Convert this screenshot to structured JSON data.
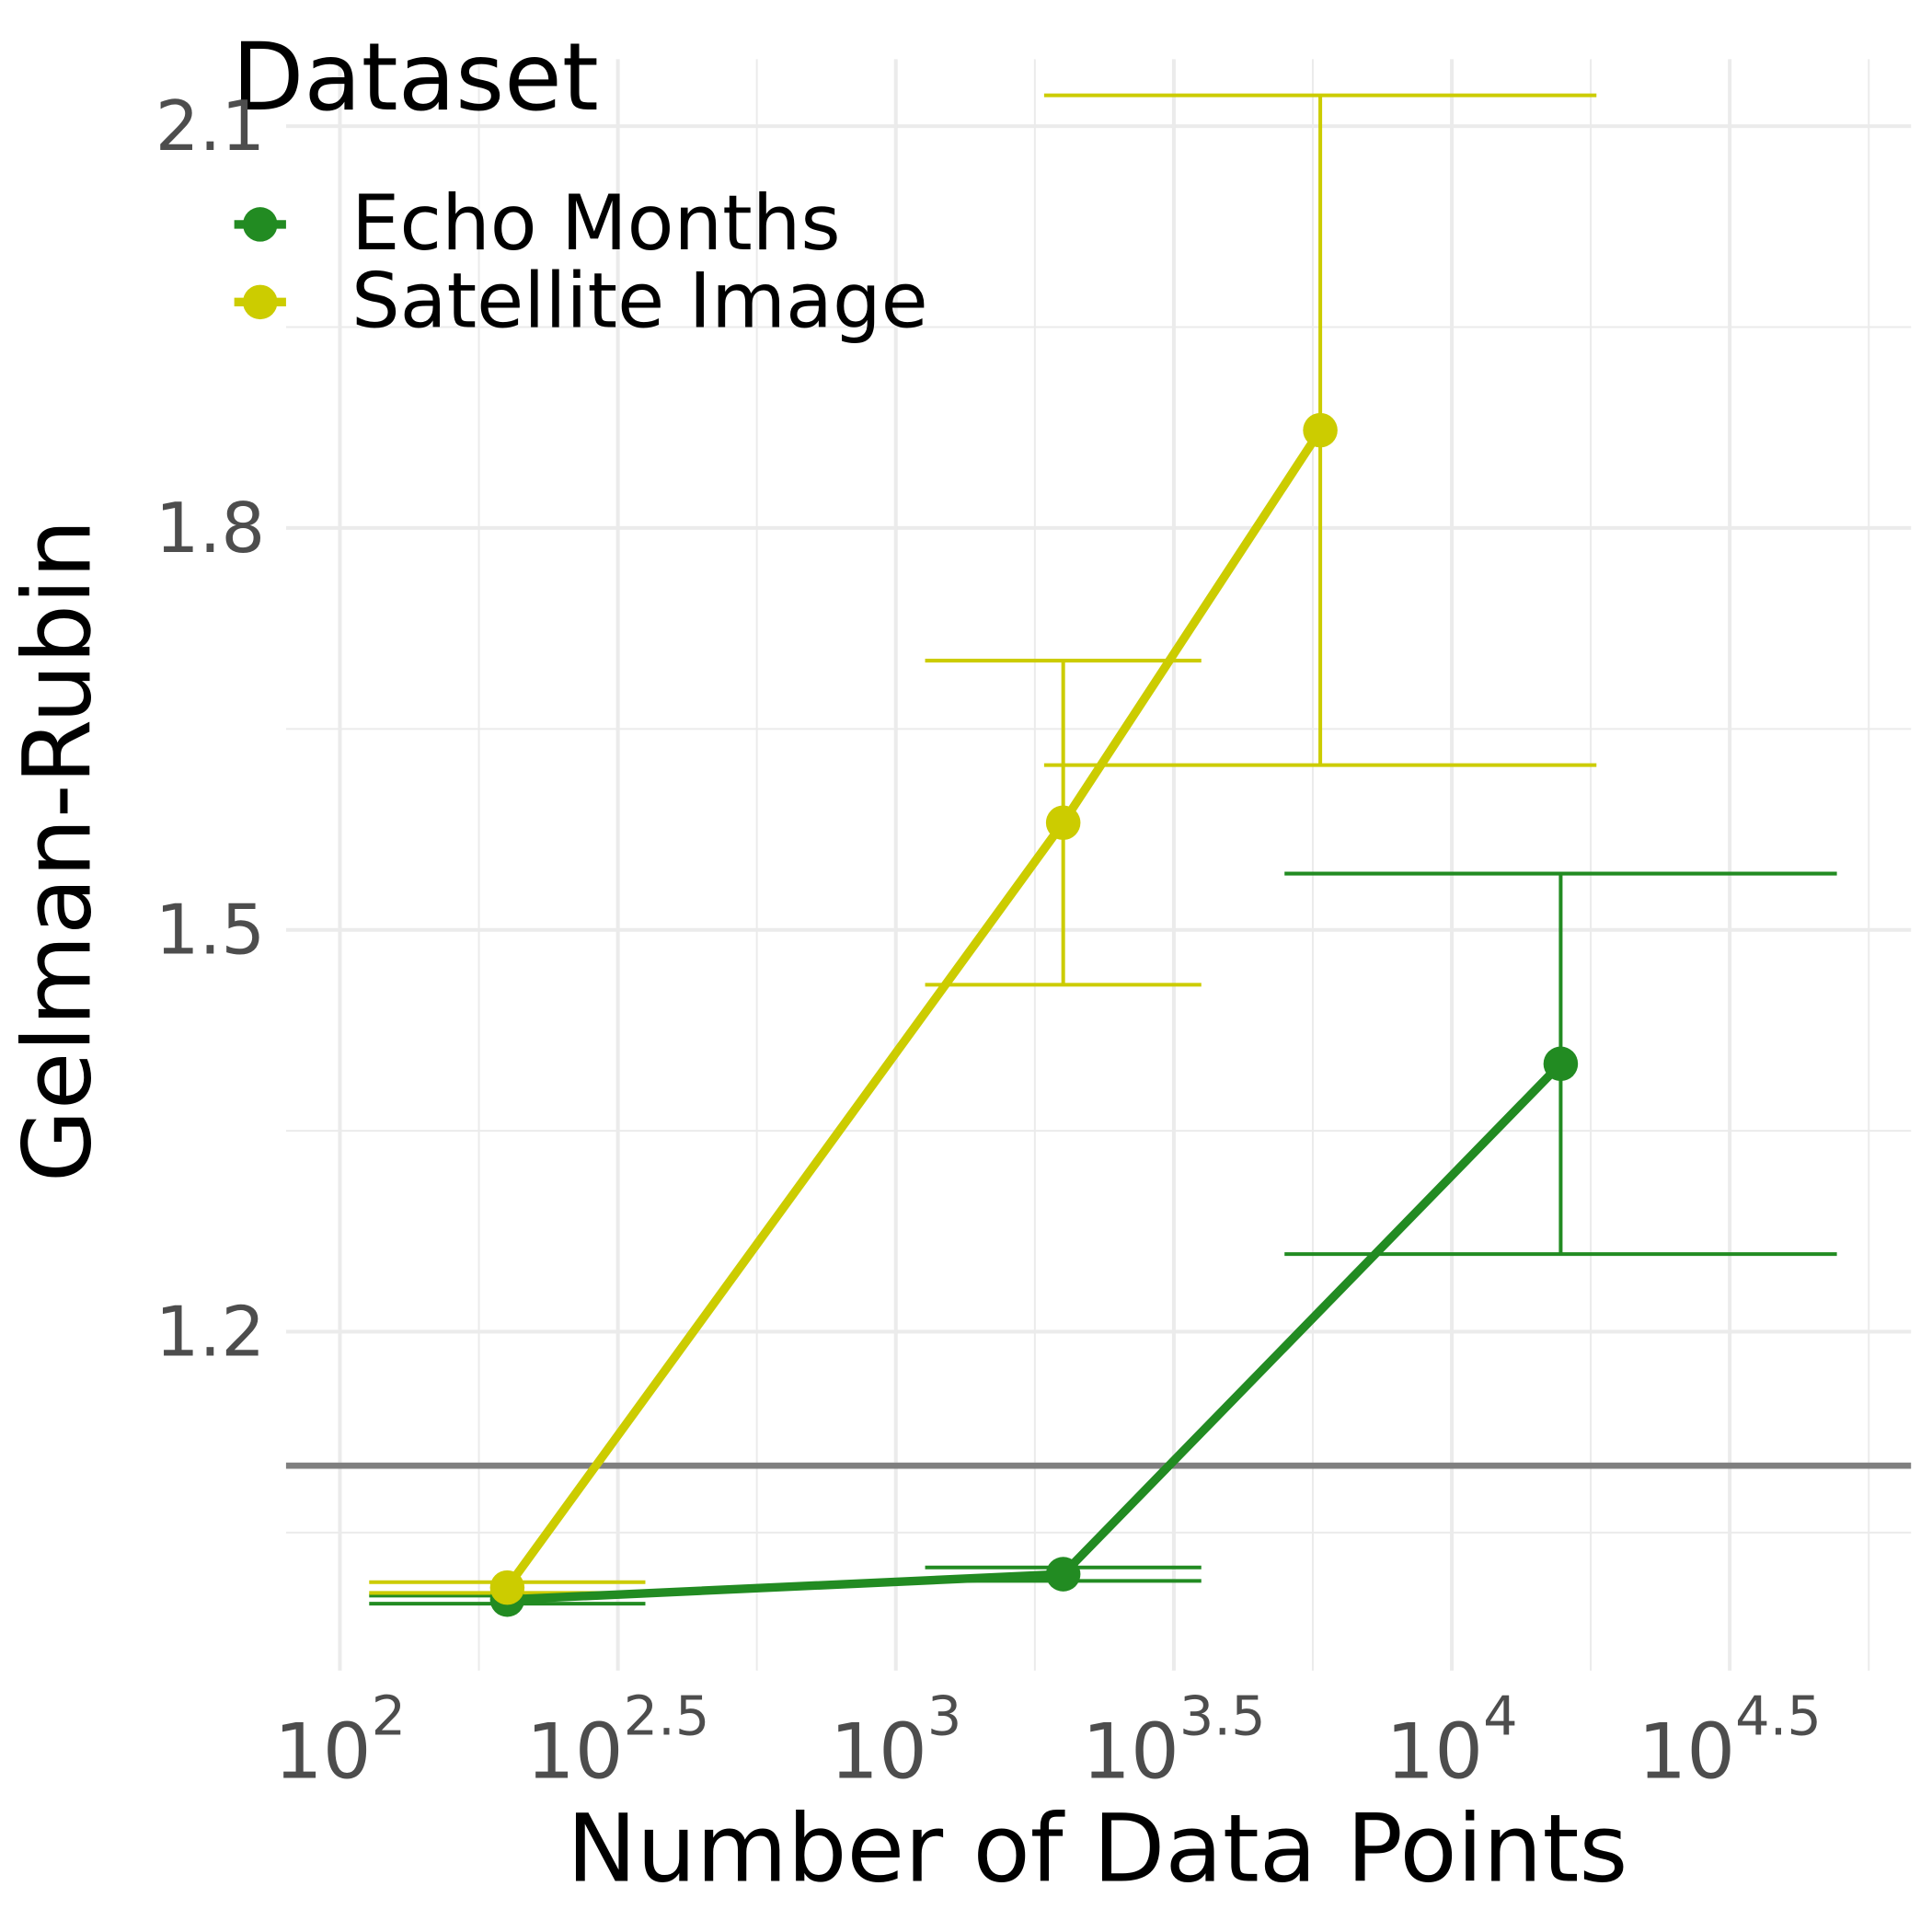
{
  "chart_data": {
    "type": "line",
    "x_label": "Number of Data Points",
    "y_label": "Gelman-Rubin",
    "x": [
      200,
      2000,
      15700
    ],
    "series": [
      {
        "name": "Echo Months",
        "color": "#228b22",
        "x": [
          200,
          2000,
          15700
        ],
        "values": [
          1.0,
          1.019,
          1.4
        ],
        "errors": [
          0.003,
          0.005,
          0.142
        ]
      },
      {
        "name": "Satellite Image",
        "color": "#cccc00",
        "x": [
          200,
          2000,
          5800
        ],
        "values": [
          1.009,
          1.58,
          1.873
        ],
        "errors": [
          0.004,
          0.121,
          0.25
        ]
      }
    ],
    "xscale": "log",
    "xlim": [
      80,
      67000
    ],
    "xticks": [
      {
        "value": 100,
        "label": "10",
        "exponent": "2"
      },
      {
        "value": 316.23,
        "label": "10",
        "exponent": "2.5"
      },
      {
        "value": 1000,
        "label": "10",
        "exponent": "3"
      },
      {
        "value": 3162.3,
        "label": "10",
        "exponent": "3.5"
      },
      {
        "value": 10000,
        "label": "10",
        "exponent": "4"
      },
      {
        "value": 31623,
        "label": "10",
        "exponent": "4.5"
      }
    ],
    "xminorticks": [
      177.83,
      562.34,
      1778.3,
      5623.4,
      17783,
      56234
    ],
    "ylim": [
      0.947,
      2.15
    ],
    "yticks": [
      1.2,
      1.5,
      1.8,
      2.1
    ],
    "yminorticks": [
      1.05,
      1.35,
      1.65,
      1.95
    ],
    "grid": true,
    "reference_line": 1.1,
    "reference_color": "#7f7f7f",
    "legend_title": "Dataset",
    "legend_position": "top-left"
  }
}
